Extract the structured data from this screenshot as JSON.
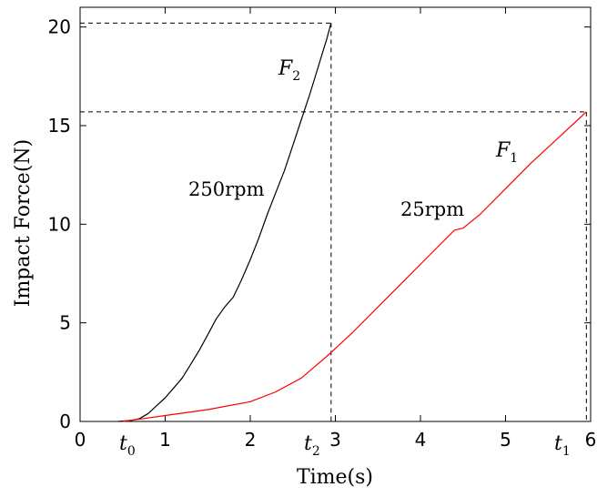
{
  "chart_data": {
    "type": "line",
    "xlabel": "Time(s)",
    "ylabel": "Impact Force(N)",
    "xlim": [
      0,
      6
    ],
    "ylim": [
      0,
      21
    ],
    "xticks": [
      {
        "value": 0,
        "label": "0"
      },
      {
        "value": 1,
        "label": "1"
      },
      {
        "value": 2,
        "label": "2"
      },
      {
        "value": 3,
        "label": "3"
      },
      {
        "value": 4,
        "label": "4"
      },
      {
        "value": 5,
        "label": "5"
      },
      {
        "value": 6,
        "label": "6"
      }
    ],
    "yticks": [
      {
        "value": 0,
        "label": "0"
      },
      {
        "value": 5,
        "label": "5"
      },
      {
        "value": 10,
        "label": "10"
      },
      {
        "value": 15,
        "label": "15"
      },
      {
        "value": 20,
        "label": "20"
      }
    ],
    "grid": false,
    "series": [
      {
        "name": "F2",
        "color": "#000000",
        "x": [
          0.45,
          0.6,
          0.7,
          0.8,
          0.9,
          1.0,
          1.1,
          1.2,
          1.3,
          1.4,
          1.5,
          1.6,
          1.7,
          1.8,
          1.9,
          2.0,
          2.1,
          2.2,
          2.3,
          2.4,
          2.5,
          2.6,
          2.7,
          2.8,
          2.9,
          2.95
        ],
        "y": [
          0.0,
          0.05,
          0.15,
          0.4,
          0.8,
          1.2,
          1.7,
          2.2,
          2.9,
          3.6,
          4.4,
          5.2,
          5.8,
          6.3,
          7.2,
          8.2,
          9.3,
          10.5,
          11.6,
          12.7,
          14.0,
          15.3,
          16.6,
          18.0,
          19.4,
          20.2
        ]
      },
      {
        "name": "F1",
        "color": "#ff0000",
        "x": [
          0.5,
          0.75,
          1.0,
          1.5,
          2.0,
          2.3,
          2.6,
          2.9,
          3.2,
          3.5,
          3.8,
          4.1,
          4.4,
          4.5,
          4.7,
          5.0,
          5.3,
          5.6,
          5.85,
          5.95
        ],
        "y": [
          0.0,
          0.15,
          0.3,
          0.6,
          1.0,
          1.5,
          2.2,
          3.3,
          4.5,
          5.8,
          7.1,
          8.4,
          9.7,
          9.8,
          10.5,
          11.8,
          13.1,
          14.3,
          15.3,
          15.7
        ]
      }
    ],
    "annotations": {
      "rpm_f2": "250rpm",
      "rpm_f1": "25rpm",
      "f2_label": {
        "main": "F",
        "sub": "2"
      },
      "f1_label": {
        "main": "F",
        "sub": "1"
      },
      "t0_label": {
        "main": "t",
        "sub": "0"
      },
      "t2_label": {
        "main": "t",
        "sub": "2"
      },
      "t1_label": {
        "main": "t",
        "sub": "1"
      }
    },
    "reference_lines": {
      "f2_peak": {
        "x": 2.95,
        "y": 20.2
      },
      "f1_peak": {
        "x": 5.95,
        "y": 15.7
      }
    }
  }
}
